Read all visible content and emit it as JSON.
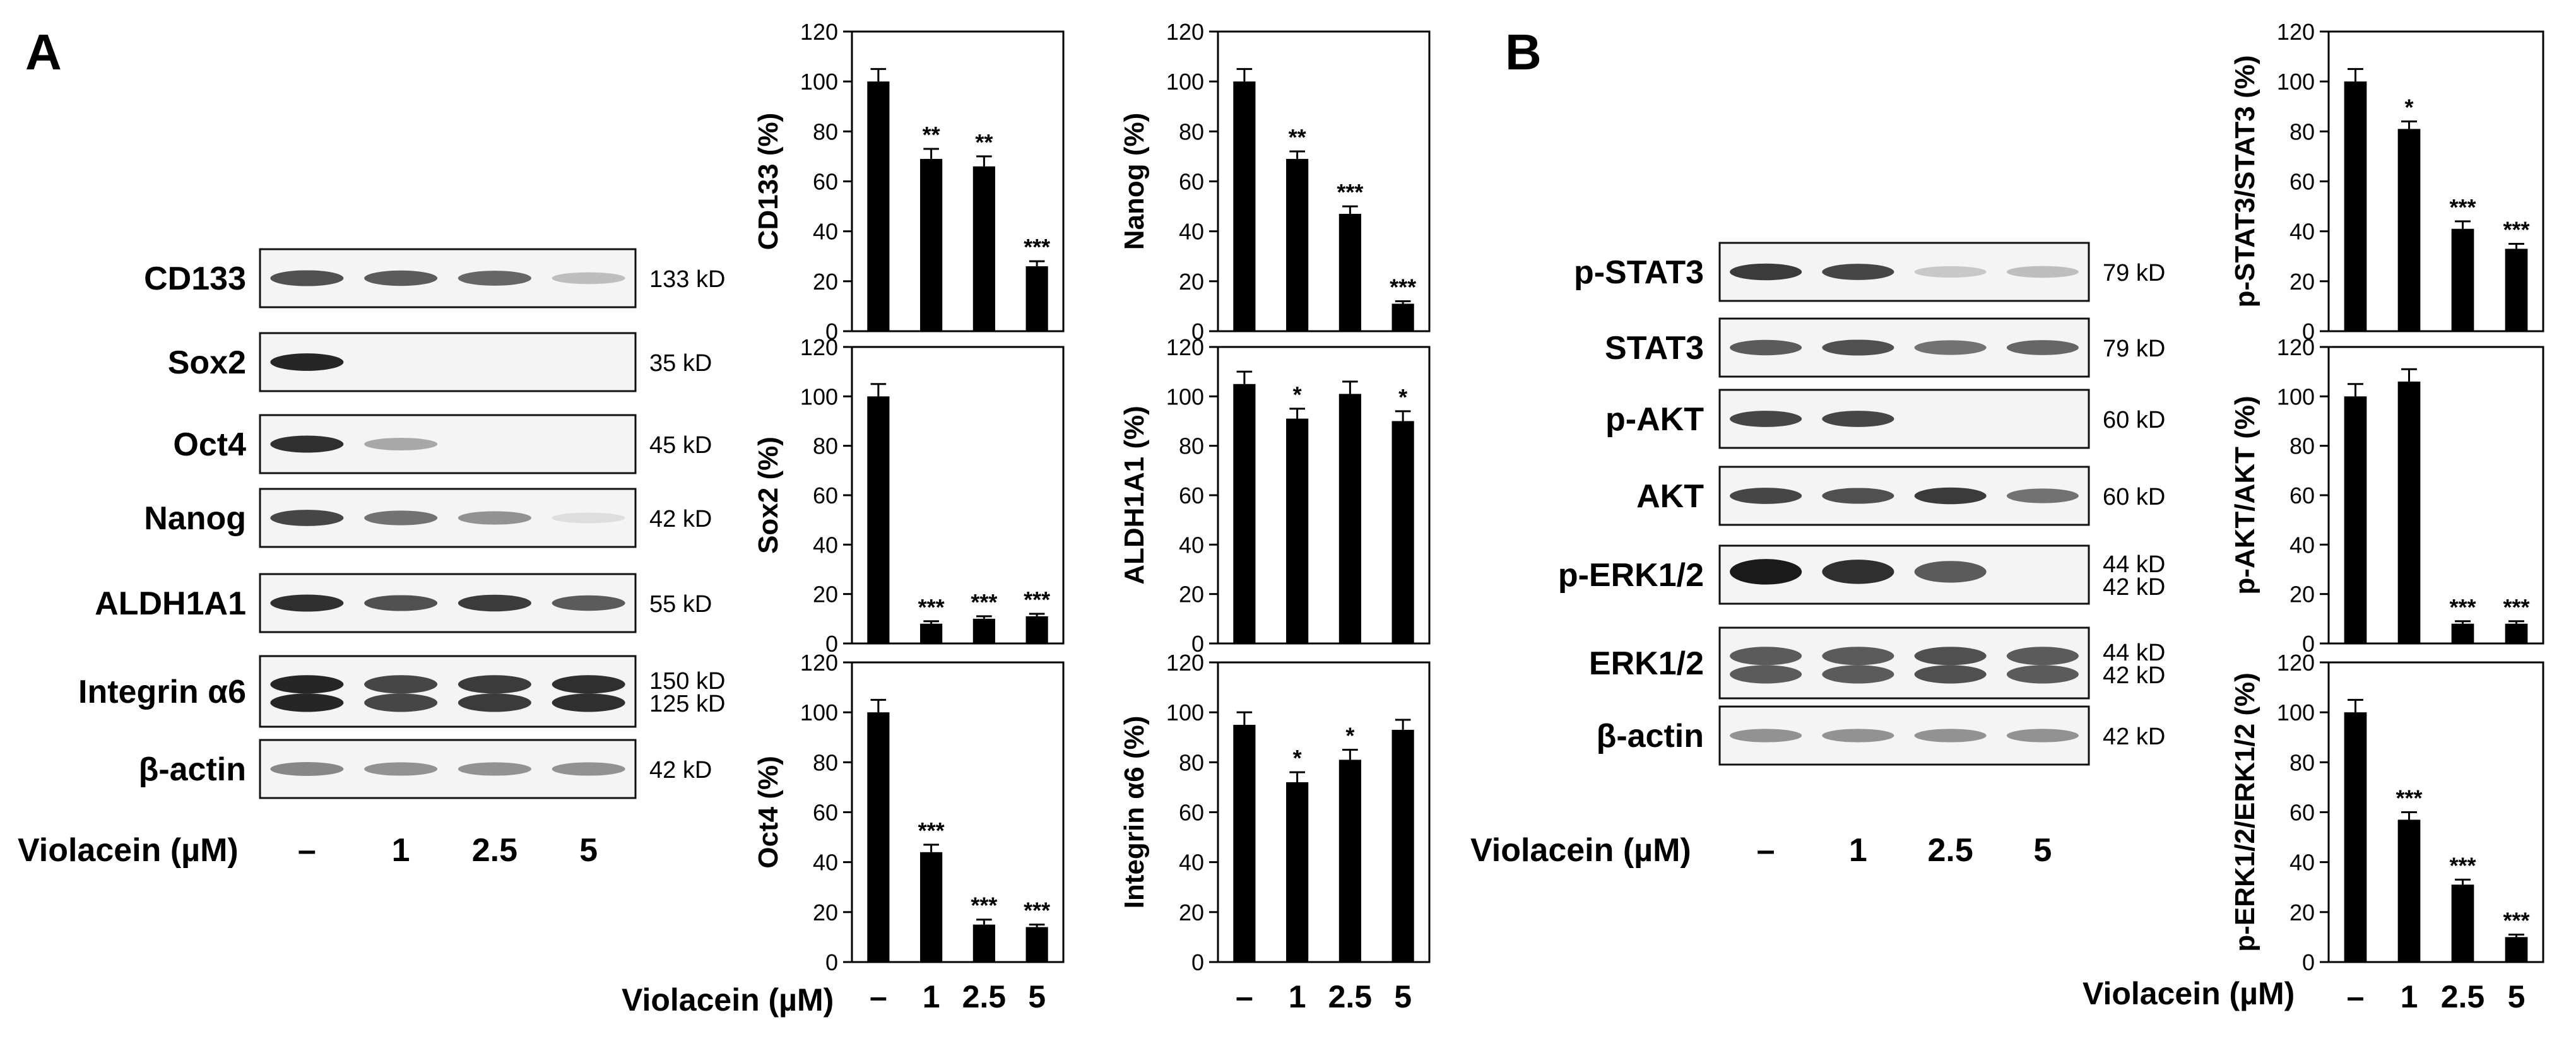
{
  "panels": {
    "a": "A",
    "b": "B"
  },
  "treatment_label": "Violacein (µM)",
  "doses": [
    "–",
    "1",
    "2.5",
    "5"
  ],
  "colors": {
    "bar": "#000000",
    "band": "#1a1a1a",
    "blot_bg": "#f4f4f4"
  },
  "blot_a": {
    "rows": [
      {
        "name": "CD133",
        "size": "133 kD",
        "intensity": [
          0.75,
          0.7,
          0.65,
          0.25
        ],
        "double": false
      },
      {
        "name": "Sox2",
        "size": "35 kD",
        "intensity": [
          0.95,
          0,
          0,
          0
        ],
        "double": false
      },
      {
        "name": "Oct4",
        "size": "45 kD",
        "intensity": [
          0.9,
          0.35,
          0,
          0
        ],
        "double": false
      },
      {
        "name": "Nanog",
        "size": "42 kD",
        "intensity": [
          0.8,
          0.6,
          0.45,
          0.1
        ],
        "double": false
      },
      {
        "name": "ALDH1A1",
        "size": "55 kD",
        "intensity": [
          0.9,
          0.75,
          0.85,
          0.7
        ],
        "double": false
      },
      {
        "name": "Integrin α6",
        "size": "150 kD",
        "size2": "125 kD",
        "intensity": [
          0.95,
          0.8,
          0.85,
          0.9
        ],
        "double": true
      },
      {
        "name": "β-actin",
        "size": "42 kD",
        "intensity": [
          0.5,
          0.45,
          0.45,
          0.45
        ],
        "double": false
      }
    ]
  },
  "blot_b": {
    "rows": [
      {
        "name": "p-STAT3",
        "size": "79 kD",
        "intensity": [
          0.85,
          0.8,
          0.2,
          0.25
        ],
        "double": false
      },
      {
        "name": "STAT3",
        "size": "79 kD",
        "intensity": [
          0.7,
          0.75,
          0.6,
          0.65
        ],
        "double": false
      },
      {
        "name": "p-AKT",
        "size": "60 kD",
        "intensity": [
          0.8,
          0.8,
          0,
          0
        ],
        "double": false
      },
      {
        "name": "AKT",
        "size": "60 kD",
        "intensity": [
          0.8,
          0.75,
          0.85,
          0.6
        ],
        "double": false
      },
      {
        "name": "p-ERK1/2",
        "size": "44 kD",
        "size2": "42 kD",
        "intensity": [
          1.0,
          0.9,
          0.7,
          0
        ],
        "double": false
      },
      {
        "name": "ERK1/2",
        "size": "44 kD",
        "size2": "42 kD",
        "intensity": [
          0.7,
          0.7,
          0.75,
          0.7
        ],
        "double": true
      },
      {
        "name": "β-actin",
        "size": "42 kD",
        "intensity": [
          0.45,
          0.45,
          0.45,
          0.45
        ],
        "double": false
      }
    ]
  },
  "chart_data": [
    {
      "type": "bar",
      "panel": "A",
      "ylabel": "CD133 (%)",
      "categories": [
        "–",
        "1",
        "2.5",
        "5"
      ],
      "values": [
        100,
        69,
        66,
        26
      ],
      "errors": [
        5,
        4,
        4,
        2
      ],
      "significance": [
        "",
        "**",
        "**",
        "***"
      ],
      "ylim": [
        0,
        120
      ],
      "yticks": [
        0,
        20,
        40,
        60,
        80,
        100,
        120
      ]
    },
    {
      "type": "bar",
      "panel": "A",
      "ylabel": "Nanog (%)",
      "categories": [
        "–",
        "1",
        "2.5",
        "5"
      ],
      "values": [
        100,
        69,
        47,
        11
      ],
      "errors": [
        5,
        3,
        3,
        1
      ],
      "significance": [
        "",
        "**",
        "***",
        "***"
      ],
      "ylim": [
        0,
        120
      ],
      "yticks": [
        0,
        20,
        40,
        60,
        80,
        100,
        120
      ]
    },
    {
      "type": "bar",
      "panel": "A",
      "ylabel": "Sox2 (%)",
      "categories": [
        "–",
        "1",
        "2.5",
        "5"
      ],
      "values": [
        100,
        8,
        10,
        11
      ],
      "errors": [
        5,
        1,
        1,
        1
      ],
      "significance": [
        "",
        "***",
        "***",
        "***"
      ],
      "ylim": [
        0,
        120
      ],
      "yticks": [
        0,
        20,
        40,
        60,
        80,
        100,
        120
      ]
    },
    {
      "type": "bar",
      "panel": "A",
      "ylabel": "ALDH1A1 (%)",
      "categories": [
        "–",
        "1",
        "2.5",
        "5"
      ],
      "values": [
        105,
        91,
        101,
        90
      ],
      "errors": [
        5,
        4,
        5,
        4
      ],
      "significance": [
        "",
        "*",
        "",
        "*"
      ],
      "ylim": [
        0,
        120
      ],
      "yticks": [
        0,
        20,
        40,
        60,
        80,
        100,
        120
      ]
    },
    {
      "type": "bar",
      "panel": "A",
      "ylabel": "Oct4 (%)",
      "categories": [
        "–",
        "1",
        "2.5",
        "5"
      ],
      "values": [
        100,
        44,
        15,
        14
      ],
      "errors": [
        5,
        3,
        2,
        1
      ],
      "significance": [
        "",
        "***",
        "***",
        "***"
      ],
      "ylim": [
        0,
        120
      ],
      "yticks": [
        0,
        20,
        40,
        60,
        80,
        100,
        120
      ]
    },
    {
      "type": "bar",
      "panel": "A",
      "ylabel": "Integrin α6 (%)",
      "categories": [
        "–",
        "1",
        "2.5",
        "5"
      ],
      "values": [
        95,
        72,
        81,
        93
      ],
      "errors": [
        5,
        4,
        4,
        4
      ],
      "significance": [
        "",
        "*",
        "*",
        ""
      ],
      "ylim": [
        0,
        120
      ],
      "yticks": [
        0,
        20,
        40,
        60,
        80,
        100,
        120
      ]
    },
    {
      "type": "bar",
      "panel": "B",
      "ylabel": "p-STAT3/STAT3 (%)",
      "categories": [
        "–",
        "1",
        "2.5",
        "5"
      ],
      "values": [
        100,
        81,
        41,
        33
      ],
      "errors": [
        5,
        3,
        3,
        2
      ],
      "significance": [
        "",
        "*",
        "***",
        "***"
      ],
      "ylim": [
        0,
        120
      ],
      "yticks": [
        0,
        20,
        40,
        60,
        80,
        100,
        120
      ]
    },
    {
      "type": "bar",
      "panel": "B",
      "ylabel": "p-AKT/AKT (%)",
      "categories": [
        "–",
        "1",
        "2.5",
        "5"
      ],
      "values": [
        100,
        106,
        8,
        8
      ],
      "errors": [
        5,
        5,
        1,
        1
      ],
      "significance": [
        "",
        "",
        "***",
        "***"
      ],
      "ylim": [
        0,
        120
      ],
      "yticks": [
        0,
        20,
        40,
        60,
        80,
        100,
        120
      ]
    },
    {
      "type": "bar",
      "panel": "B",
      "ylabel": "p-ERK1/2/ERK1/2 (%)",
      "categories": [
        "–",
        "1",
        "2.5",
        "5"
      ],
      "values": [
        100,
        57,
        31,
        10
      ],
      "errors": [
        5,
        3,
        2,
        1
      ],
      "significance": [
        "",
        "***",
        "***",
        "***"
      ],
      "ylim": [
        0,
        120
      ],
      "yticks": [
        0,
        20,
        40,
        60,
        80,
        100,
        120
      ]
    }
  ]
}
